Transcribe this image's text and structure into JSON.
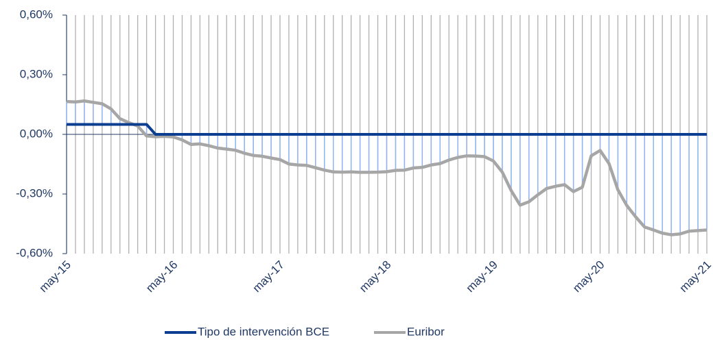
{
  "chart_data": {
    "type": "line",
    "categories": [
      "may-15",
      null,
      null,
      null,
      null,
      null,
      null,
      null,
      null,
      null,
      null,
      null,
      "may-16",
      null,
      null,
      null,
      null,
      null,
      null,
      null,
      null,
      null,
      null,
      null,
      "may-17",
      null,
      null,
      null,
      null,
      null,
      null,
      null,
      null,
      null,
      null,
      null,
      "may-18",
      null,
      null,
      null,
      null,
      null,
      null,
      null,
      null,
      null,
      null,
      null,
      "may-19",
      null,
      null,
      null,
      null,
      null,
      null,
      null,
      null,
      null,
      null,
      null,
      "may-20",
      null,
      null,
      null,
      null,
      null,
      null,
      null,
      null,
      null,
      null,
      null,
      "may-21"
    ],
    "series": [
      {
        "name": "Tipo de intervención BCE",
        "color": "#0b3d91",
        "values": [
          0.05,
          0.05,
          0.05,
          0.05,
          0.05,
          0.05,
          0.05,
          0.05,
          0.05,
          0.05,
          0,
          0,
          0,
          0,
          0,
          0,
          0,
          0,
          0,
          0,
          0,
          0,
          0,
          0,
          0,
          0,
          0,
          0,
          0,
          0,
          0,
          0,
          0,
          0,
          0,
          0,
          0,
          0,
          0,
          0,
          0,
          0,
          0,
          0,
          0,
          0,
          0,
          0,
          0,
          0,
          0,
          0,
          0,
          0,
          0,
          0,
          0,
          0,
          0,
          0,
          0,
          0,
          0,
          0,
          0,
          0,
          0,
          0,
          0,
          0,
          0,
          0,
          0
        ]
      },
      {
        "name": "Euribor",
        "color": "#a6a6a6",
        "values": [
          0.165,
          0.163,
          0.168,
          0.161,
          0.154,
          0.128,
          0.079,
          0.059,
          0.042,
          -0.008,
          -0.012,
          -0.01,
          -0.013,
          -0.028,
          -0.051,
          -0.048,
          -0.057,
          -0.069,
          -0.074,
          -0.08,
          -0.095,
          -0.106,
          -0.11,
          -0.119,
          -0.127,
          -0.149,
          -0.154,
          -0.156,
          -0.168,
          -0.18,
          -0.189,
          -0.19,
          -0.189,
          -0.191,
          -0.191,
          -0.19,
          -0.188,
          -0.181,
          -0.18,
          -0.169,
          -0.166,
          -0.154,
          -0.147,
          -0.129,
          -0.116,
          -0.108,
          -0.109,
          -0.112,
          -0.134,
          -0.19,
          -0.283,
          -0.356,
          -0.339,
          -0.304,
          -0.272,
          -0.261,
          -0.253,
          -0.288,
          -0.266,
          -0.108,
          -0.081,
          -0.147,
          -0.279,
          -0.358,
          -0.415,
          -0.466,
          -0.481,
          -0.497,
          -0.505,
          -0.501,
          -0.487,
          -0.484,
          -0.481
        ]
      }
    ],
    "ylim": [
      -0.6,
      0.6
    ],
    "yticks": [
      {
        "value": -0.6,
        "label": "-0,60%"
      },
      {
        "value": -0.3,
        "label": "-0,30%"
      },
      {
        "value": 0,
        "label": "0,00%"
      },
      {
        "value": 0.3,
        "label": "0,30%"
      },
      {
        "value": 0.6,
        "label": "0,60%"
      }
    ],
    "grid": true,
    "drop_lines_color": "#8fb3f5",
    "legend": "bottom"
  }
}
